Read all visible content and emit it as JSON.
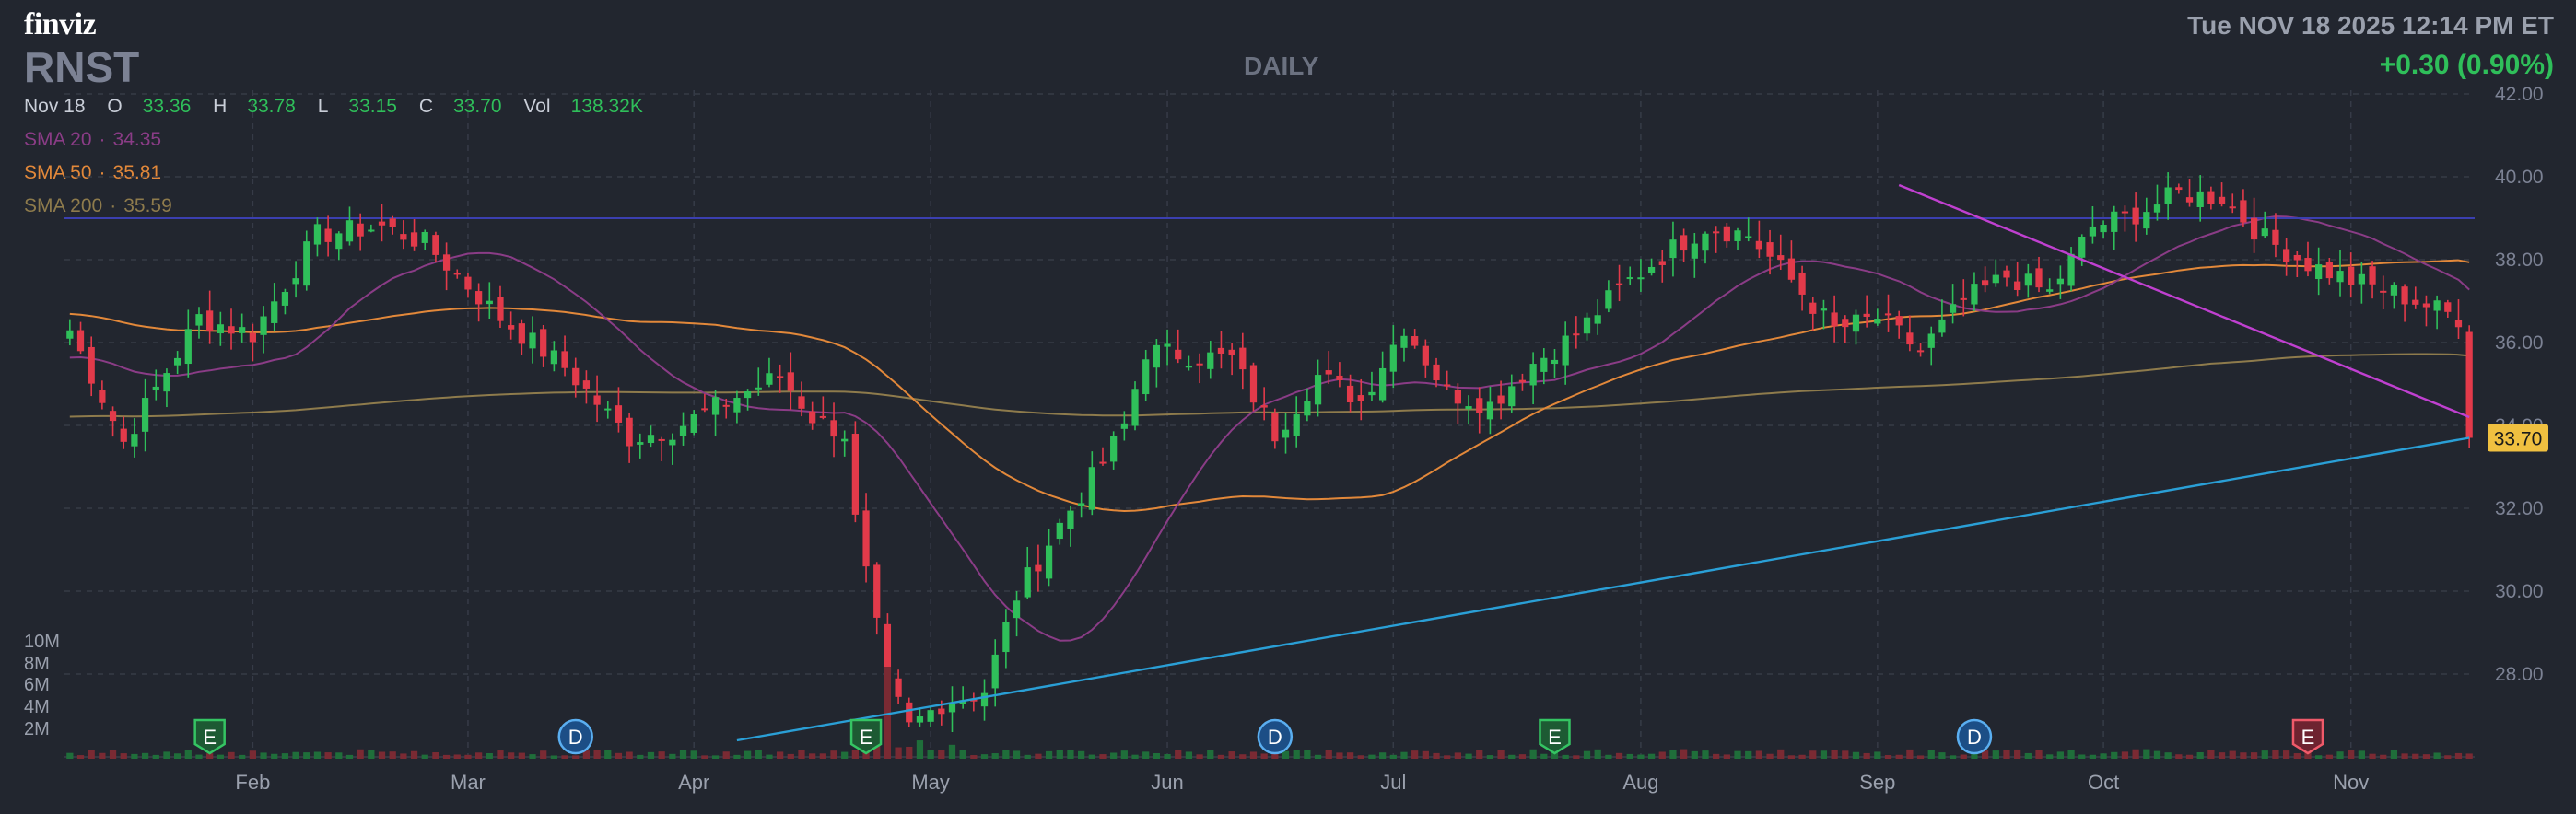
{
  "brand": "finviz",
  "ticker": "RNST",
  "period": "DAILY",
  "datetime": "Tue NOV 18 2025 12:14 PM ET",
  "change": "+0.30 (0.90%)",
  "ohlc": {
    "date": "Nov 18",
    "o_label": "O",
    "o": "33.36",
    "h_label": "H",
    "h": "33.78",
    "l_label": "L",
    "l": "33.15",
    "c_label": "C",
    "c": "33.70",
    "vol_label": "Vol",
    "vol": "138.32K"
  },
  "indicators": {
    "sma20": {
      "label": "SMA 20",
      "value": "34.35"
    },
    "sma50": {
      "label": "SMA 50",
      "value": "35.81"
    },
    "sma200": {
      "label": "SMA 200",
      "value": "35.59"
    }
  },
  "colors": {
    "up": "#2fbf5a",
    "down": "#e23a4a",
    "sma20": "#8a3c86",
    "sma50": "#e2883a",
    "sma200": "#8e7b4c",
    "trend_up": "#2a9fd6",
    "trend_down": "#c040d0",
    "resistance": "#3b3fb0",
    "price_tag": "#f0c040"
  },
  "chart_data": {
    "type": "candlestick",
    "x_ticks": [
      "Feb",
      "Mar",
      "Apr",
      "May",
      "Jun",
      "Jul",
      "Aug",
      "Sep",
      "Oct",
      "Nov"
    ],
    "y_ticks": [
      "42.00",
      "40.00",
      "38.00",
      "36.00",
      "34.00",
      "32.00",
      "30.00",
      "28.00"
    ],
    "ylim": [
      26.0,
      42.0
    ],
    "volume_ticks": [
      "10M",
      "8M",
      "6M",
      "4M",
      "2M"
    ],
    "last_price": "33.70",
    "start_date": "2025-01-09",
    "close_anchors": [
      [
        0,
        36.3
      ],
      [
        5,
        33.6
      ],
      [
        12,
        36.6
      ],
      [
        17,
        36.2
      ],
      [
        23,
        38.6
      ],
      [
        29,
        38.8
      ],
      [
        33,
        38.4
      ],
      [
        40,
        36.6
      ],
      [
        46,
        35.4
      ],
      [
        52,
        33.7
      ],
      [
        56,
        33.9
      ],
      [
        62,
        34.7
      ],
      [
        66,
        35.2
      ],
      [
        69,
        34.2
      ],
      [
        72,
        33.8
      ],
      [
        73,
        31.7
      ],
      [
        76,
        27.8
      ],
      [
        78,
        26.7
      ],
      [
        81,
        27.3
      ],
      [
        85,
        27.6
      ],
      [
        88,
        29.9
      ],
      [
        92,
        31.6
      ],
      [
        96,
        33.1
      ],
      [
        98,
        34.0
      ],
      [
        100,
        35.8
      ],
      [
        104,
        35.7
      ],
      [
        108,
        35.6
      ],
      [
        112,
        33.8
      ],
      [
        116,
        35.2
      ],
      [
        120,
        34.6
      ],
      [
        124,
        36.4
      ],
      [
        128,
        34.8
      ],
      [
        132,
        34.5
      ],
      [
        136,
        35.5
      ],
      [
        140,
        36.2
      ],
      [
        144,
        37.3
      ],
      [
        148,
        38.1
      ],
      [
        152,
        38.8
      ],
      [
        156,
        38.6
      ],
      [
        160,
        37.5
      ],
      [
        164,
        36.3
      ],
      [
        168,
        36.6
      ],
      [
        172,
        35.8
      ],
      [
        176,
        37.0
      ],
      [
        180,
        37.6
      ],
      [
        184,
        37.2
      ],
      [
        188,
        38.8
      ],
      [
        192,
        39.1
      ],
      [
        196,
        39.6
      ],
      [
        200,
        39.5
      ],
      [
        204,
        38.5
      ],
      [
        208,
        37.9
      ],
      [
        212,
        37.5
      ],
      [
        216,
        37.2
      ],
      [
        220,
        36.8
      ],
      [
        224,
        36.4
      ],
      [
        228,
        37.4
      ],
      [
        232,
        36.6
      ],
      [
        235,
        34.7
      ],
      [
        238,
        35.6
      ],
      [
        240,
        33.5
      ],
      [
        244,
        34.2
      ],
      [
        248,
        34.7
      ],
      [
        252,
        33.7
      ],
      [
        255,
        33.3
      ],
      [
        258,
        34.1
      ],
      [
        261,
        34.6
      ],
      [
        264,
        34.8
      ],
      [
        267,
        33.7
      ]
    ],
    "earnings_markers": [
      {
        "label": "E",
        "date": "2025-01-28"
      },
      {
        "label": "E",
        "date": "2025-04-23"
      },
      {
        "label": "E",
        "date": "2025-07-22"
      },
      {
        "label": "E",
        "date": "2025-10-28"
      }
    ],
    "dividend_markers": [
      {
        "label": "D",
        "date": "2025-03-17"
      },
      {
        "label": "D",
        "date": "2025-06-16"
      },
      {
        "label": "D",
        "date": "2025-09-15"
      }
    ],
    "horizontal_line": {
      "price": 39.0
    },
    "trendline_up": {
      "from": [
        "2025-04-07",
        26.4
      ],
      "to": [
        "2025-11-18",
        33.7
      ]
    },
    "trendline_down": {
      "from": [
        "2025-09-04",
        39.8
      ],
      "to": [
        "2025-11-18",
        34.2
      ]
    }
  }
}
